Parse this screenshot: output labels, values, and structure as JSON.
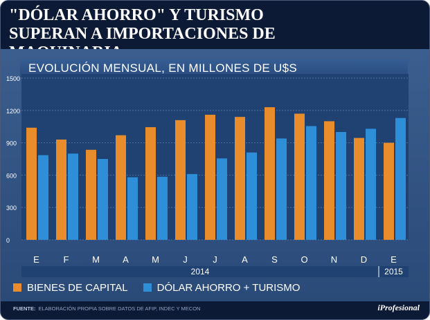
{
  "headline": "\"DÓLAR AHORRO\" Y TURISMO SUPERAN A IMPORTACIONES DE MAQUINARIA",
  "source_label": "FUENTE:",
  "source_text": "ELABORACIÓN PROPIA SOBRE DATOS DE AFIP, INDEC Y MECON",
  "brand": "iProfesional",
  "colors": {
    "bienes": "#e88c2c",
    "dolar": "#2e8fd8",
    "background": "#0d1a36",
    "panel": "#355a8c"
  },
  "chart_data": {
    "type": "bar",
    "title": "EVOLUCIÓN MENSUAL, EN MILLONES DE U$S",
    "categories": [
      "E",
      "F",
      "M",
      "A",
      "M",
      "J",
      "J",
      "A",
      "S",
      "O",
      "N",
      "D",
      "E"
    ],
    "years": [
      {
        "label": "2014",
        "span": [
          0,
          11
        ]
      },
      {
        "label": "2015",
        "span": [
          12,
          12
        ]
      }
    ],
    "series": [
      {
        "name": "BIENES DE CAPITAL",
        "values": [
          1040,
          930,
          835,
          970,
          1045,
          1110,
          1160,
          1140,
          1230,
          1170,
          1100,
          945,
          900
        ]
      },
      {
        "name": "DÓLAR AHORRO +  TURISMO",
        "values": [
          785,
          800,
          750,
          580,
          585,
          610,
          755,
          810,
          940,
          1055,
          1000,
          1030,
          1130
        ]
      }
    ],
    "yticks": [
      0,
      300,
      600,
      900,
      1200,
      1500
    ],
    "ylim": [
      0,
      1500
    ],
    "xlabel": "",
    "ylabel": "",
    "grid": true,
    "legend": "bottom-left"
  }
}
